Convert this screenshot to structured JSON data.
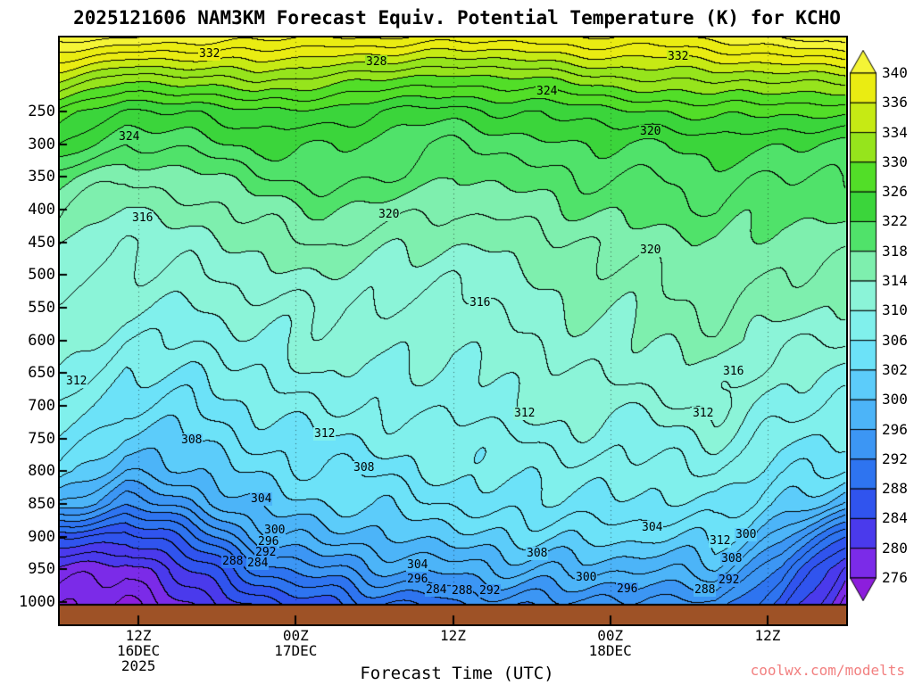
{
  "title": "2025121606 NAM3KM Forecast Equiv. Potential Temperature (K) for KCHO",
  "x_axis_title": "Forecast Time (UTC)",
  "watermark": "coolwx.com/modelts",
  "colors": {
    "background": "#FFFFFF",
    "ground": "#9E5226",
    "frame": "#000000",
    "contour_line": "#000000",
    "watermark_text": "#F28080"
  },
  "axes": {
    "y_ticks": [
      250,
      300,
      350,
      400,
      450,
      500,
      550,
      600,
      650,
      700,
      750,
      800,
      850,
      900,
      950,
      1000
    ],
    "x_ticks": [
      {
        "hour": 6,
        "lines": [
          "12Z",
          "16DEC",
          "2025"
        ]
      },
      {
        "hour": 18,
        "lines": [
          "00Z",
          "17DEC"
        ]
      },
      {
        "hour": 30,
        "lines": [
          "12Z"
        ]
      },
      {
        "hour": 42,
        "lines": [
          "00Z",
          "18DEC"
        ]
      },
      {
        "hour": 54,
        "lines": [
          "12Z"
        ]
      }
    ]
  },
  "colorbar": {
    "labels": [
      340,
      336,
      334,
      330,
      326,
      322,
      318,
      314,
      310,
      306,
      302,
      300,
      296,
      292,
      288,
      284,
      280,
      276
    ]
  },
  "chart_data": {
    "type": "heatmap",
    "title": "2025121606 NAM3KM Forecast Equiv. Potential Temperature (K) for KCHO",
    "xlabel": "Forecast Time (UTC)",
    "ylabel": "",
    "units": "K",
    "contour_interval": 2,
    "y_axis_range": [
      137,
      1034
    ],
    "x_hours": [
      0,
      5,
      10,
      15,
      20,
      25,
      30,
      35,
      40,
      45,
      50,
      55,
      60
    ],
    "pressure_levels": [
      150,
      200,
      250,
      300,
      350,
      400,
      450,
      500,
      550,
      600,
      650,
      700,
      750,
      800,
      850,
      900,
      950,
      1000
    ],
    "values": [
      [
        341,
        340,
        339,
        339,
        338,
        338,
        337,
        337,
        338,
        338,
        339,
        340,
        341
      ],
      [
        334,
        331,
        331,
        333,
        331,
        330,
        329,
        330,
        331,
        332,
        333,
        332,
        333
      ],
      [
        327,
        324,
        324,
        326,
        325,
        324,
        323,
        324,
        325,
        326,
        327,
        326,
        327
      ],
      [
        324,
        320,
        321,
        323,
        322,
        321,
        320,
        321,
        322,
        322,
        323,
        322,
        322
      ],
      [
        319,
        316,
        317,
        320,
        321,
        320,
        318,
        319,
        320,
        320,
        321,
        320,
        320
      ],
      [
        316,
        314,
        315,
        317,
        318,
        317,
        316,
        317,
        318,
        319,
        320,
        318,
        319
      ],
      [
        314,
        312,
        313,
        315,
        316,
        315,
        314,
        315,
        316,
        317,
        318,
        317,
        317
      ],
      [
        313,
        311,
        312,
        313,
        314,
        313,
        312,
        314,
        315,
        316,
        317,
        316,
        316
      ],
      [
        312,
        310,
        310,
        311,
        312,
        312,
        311,
        313,
        314,
        315,
        316,
        315,
        314
      ],
      [
        312,
        308,
        308,
        310,
        311,
        311,
        310,
        312,
        313,
        314,
        315,
        313,
        312
      ],
      [
        310,
        306,
        306,
        308,
        310,
        310,
        309,
        311,
        312,
        313,
        313,
        311,
        310
      ],
      [
        308,
        304,
        304,
        306,
        308,
        309,
        308,
        310,
        311,
        311,
        312,
        309,
        308
      ],
      [
        306,
        301,
        302,
        304,
        306,
        307,
        307,
        308,
        309,
        309,
        310,
        307,
        306
      ],
      [
        304,
        298,
        300,
        302,
        304,
        305,
        306,
        307,
        307,
        307,
        308,
        305,
        303
      ],
      [
        298,
        293,
        296,
        300,
        302,
        303,
        304,
        305,
        306,
        305,
        306,
        302,
        298
      ],
      [
        286,
        284,
        290,
        296,
        299,
        300,
        301,
        302,
        303,
        302,
        303,
        297,
        288
      ],
      [
        280,
        278,
        284,
        290,
        294,
        296,
        297,
        298,
        299,
        298,
        299,
        292,
        280
      ],
      [
        277,
        276,
        280,
        285,
        288,
        290,
        292,
        293,
        294,
        293,
        294,
        288,
        276
      ]
    ],
    "color_scale": {
      "boundaries": [
        276,
        280,
        284,
        288,
        292,
        296,
        300,
        302,
        306,
        310,
        314,
        318,
        322,
        326,
        330,
        334,
        336,
        340
      ],
      "colors": [
        "#7B2BE8",
        "#4A3AEC",
        "#3054EE",
        "#2E74F0",
        "#3C96F4",
        "#4CB4F8",
        "#5CCCFA",
        "#6CE2F8",
        "#80F0EC",
        "#8BF4D8",
        "#7EEFAE",
        "#50E26A",
        "#3BD53B",
        "#52DE28",
        "#96E41C",
        "#C6EA14",
        "#EAEC12"
      ],
      "below_color": "#8C1EDC",
      "above_color": "#F4F436"
    },
    "contour_labels": [
      {
        "v": 332,
        "fx": 0.188,
        "fy": 0.029
      },
      {
        "v": 328,
        "fx": 0.401,
        "fy": 0.043
      },
      {
        "v": 324,
        "fx": 0.618,
        "fy": 0.093
      },
      {
        "v": 332,
        "fx": 0.784,
        "fy": 0.033
      },
      {
        "v": 324,
        "fx": 0.086,
        "fy": 0.17
      },
      {
        "v": 320,
        "fx": 0.749,
        "fy": 0.161
      },
      {
        "v": 316,
        "fx": 0.103,
        "fy": 0.309
      },
      {
        "v": 320,
        "fx": 0.417,
        "fy": 0.302
      },
      {
        "v": 320,
        "fx": 0.749,
        "fy": 0.363
      },
      {
        "v": 316,
        "fx": 0.532,
        "fy": 0.453
      },
      {
        "v": 312,
        "fx": 0.019,
        "fy": 0.587
      },
      {
        "v": 316,
        "fx": 0.855,
        "fy": 0.57
      },
      {
        "v": 312,
        "fx": 0.589,
        "fy": 0.641
      },
      {
        "v": 312,
        "fx": 0.816,
        "fy": 0.641
      },
      {
        "v": 308,
        "fx": 0.166,
        "fy": 0.687
      },
      {
        "v": 312,
        "fx": 0.335,
        "fy": 0.676
      },
      {
        "v": 308,
        "fx": 0.385,
        "fy": 0.734
      },
      {
        "v": 304,
        "fx": 0.254,
        "fy": 0.787
      },
      {
        "v": 300,
        "fx": 0.271,
        "fy": 0.84
      },
      {
        "v": 296,
        "fx": 0.263,
        "fy": 0.86
      },
      {
        "v": 292,
        "fx": 0.26,
        "fy": 0.879
      },
      {
        "v": 288,
        "fx": 0.218,
        "fy": 0.894
      },
      {
        "v": 284,
        "fx": 0.25,
        "fy": 0.897
      },
      {
        "v": 304,
        "fx": 0.453,
        "fy": 0.9
      },
      {
        "v": 296,
        "fx": 0.453,
        "fy": 0.924
      },
      {
        "v": 284,
        "fx": 0.477,
        "fy": 0.942
      },
      {
        "v": 288,
        "fx": 0.51,
        "fy": 0.944
      },
      {
        "v": 292,
        "fx": 0.545,
        "fy": 0.944
      },
      {
        "v": 308,
        "fx": 0.605,
        "fy": 0.88
      },
      {
        "v": 300,
        "fx": 0.667,
        "fy": 0.921
      },
      {
        "v": 304,
        "fx": 0.751,
        "fy": 0.836
      },
      {
        "v": 296,
        "fx": 0.72,
        "fy": 0.941
      },
      {
        "v": 288,
        "fx": 0.818,
        "fy": 0.942
      },
      {
        "v": 292,
        "fx": 0.849,
        "fy": 0.926
      },
      {
        "v": 308,
        "fx": 0.852,
        "fy": 0.889
      },
      {
        "v": 300,
        "fx": 0.871,
        "fy": 0.848
      },
      {
        "v": 312,
        "fx": 0.838,
        "fy": 0.859
      }
    ]
  }
}
